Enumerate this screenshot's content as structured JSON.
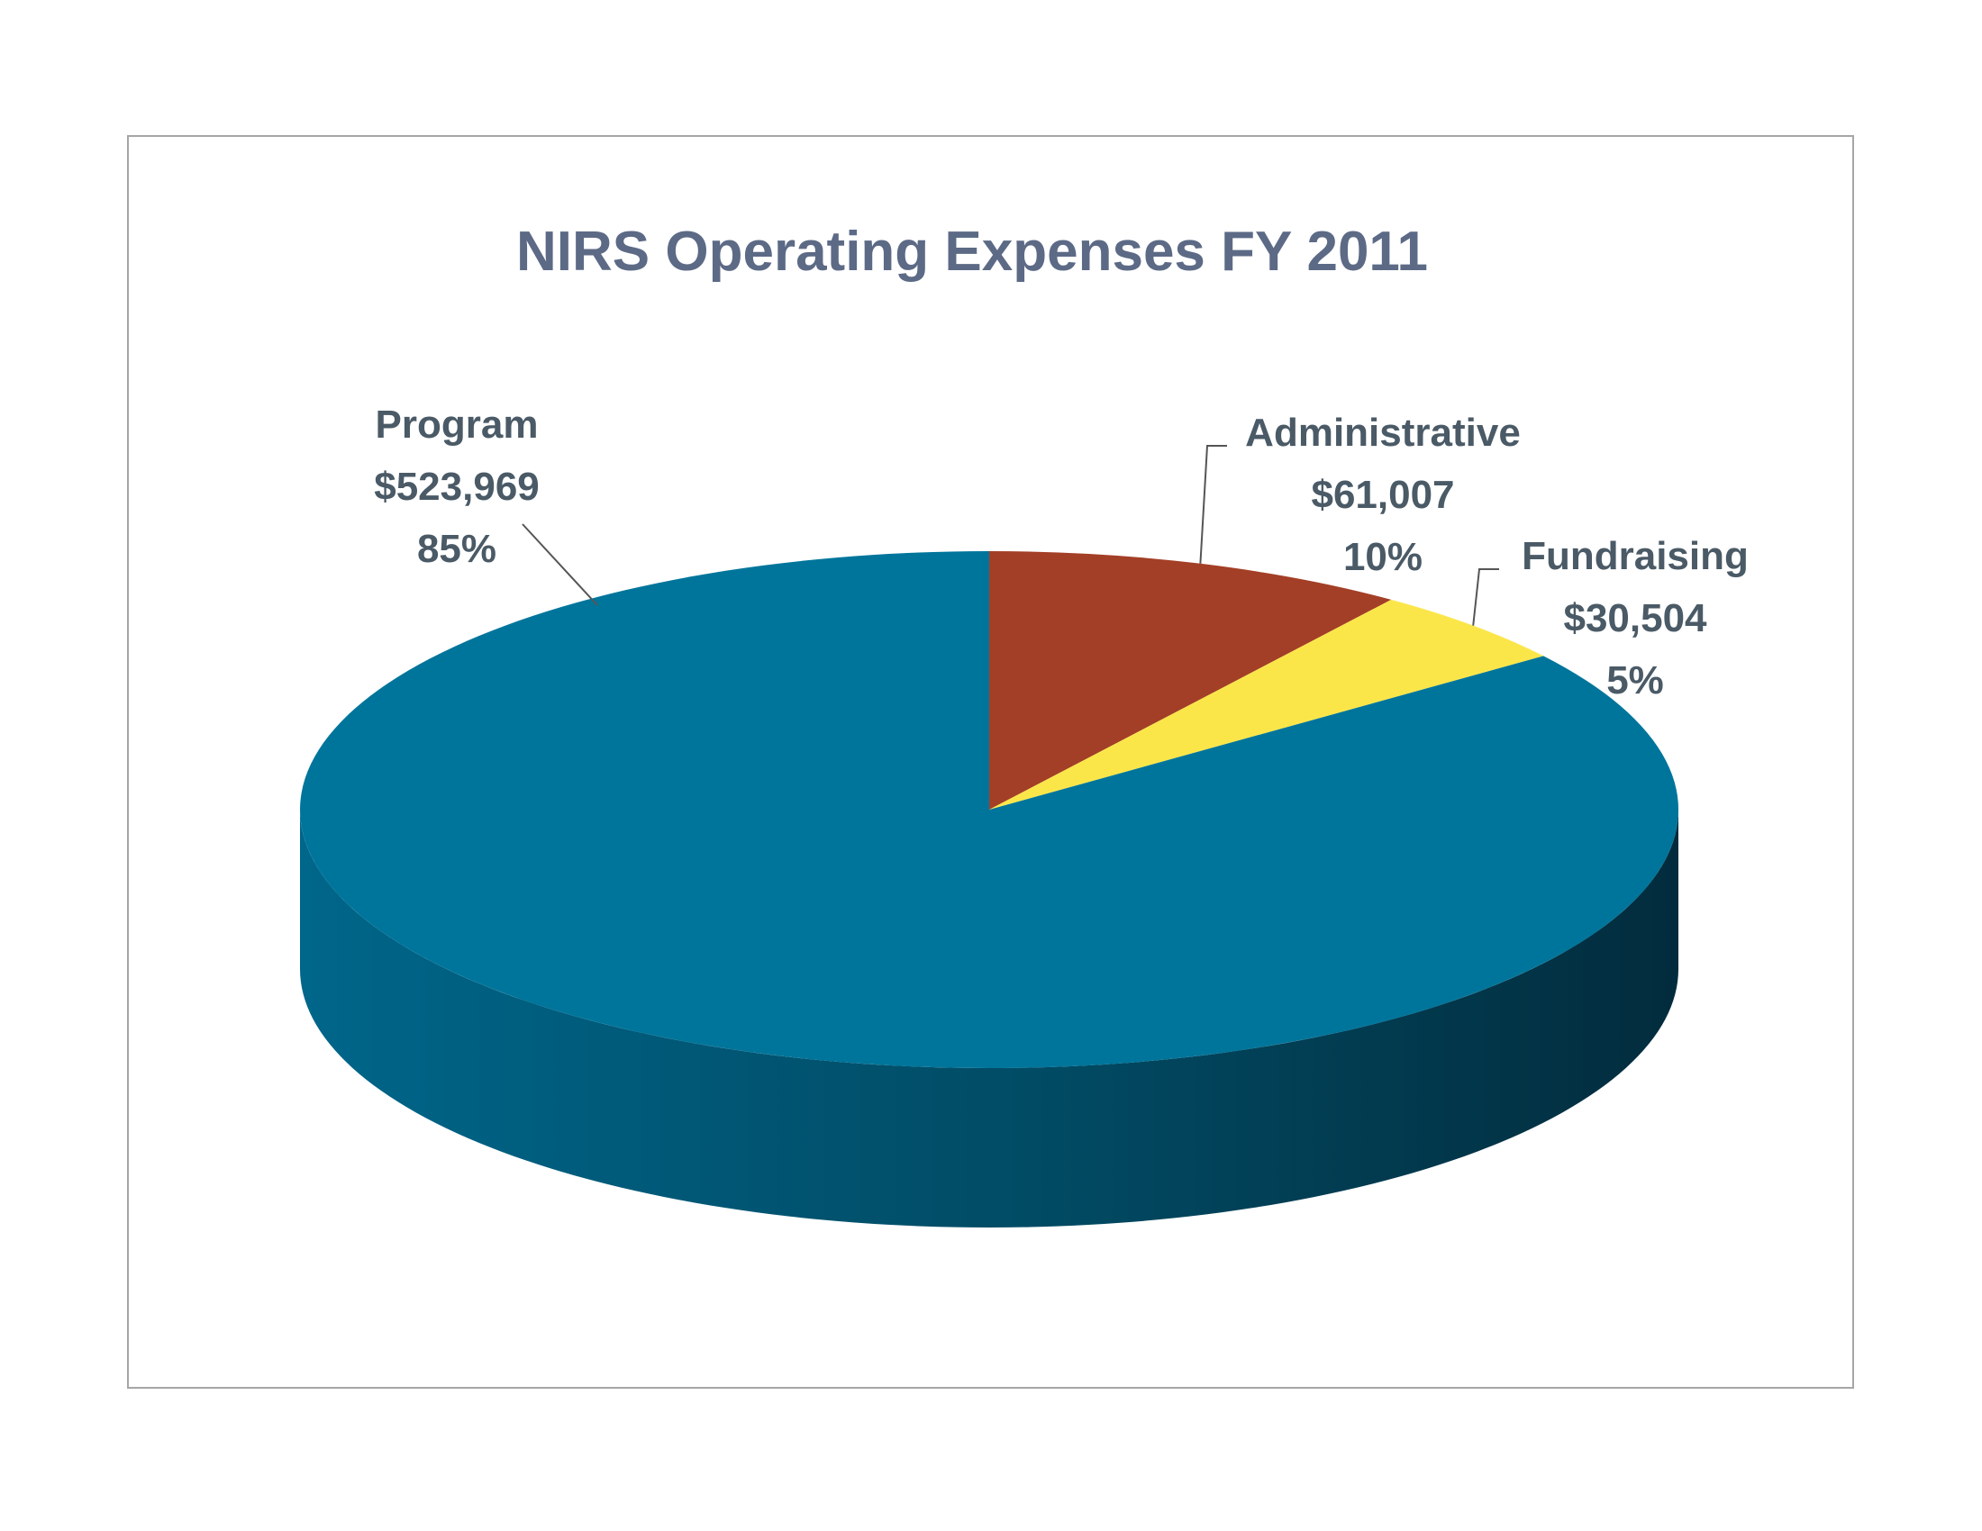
{
  "chart_data": {
    "type": "pie",
    "title": "NIRS Operating Expenses FY 2011",
    "slices": [
      {
        "label": "Program",
        "amount": "$523,969",
        "percent": "85%",
        "value": 523969,
        "color": "#00759b"
      },
      {
        "label": "Administrative",
        "amount": "$61,007",
        "percent": "10%",
        "value": 61007,
        "color": "#a33f26"
      },
      {
        "label": "Fundraising",
        "amount": "$30,504",
        "percent": "5%",
        "value": 30504,
        "color": "#fbe64a"
      }
    ],
    "style": "3d",
    "legend": "none",
    "data_labels": "outside with leader lines",
    "colors": {
      "title": "#5c6a86",
      "labels": "#4a5a66",
      "frame": "#a6a6a6",
      "side_light": "#00668a",
      "side_dark": "#022c3d"
    }
  }
}
